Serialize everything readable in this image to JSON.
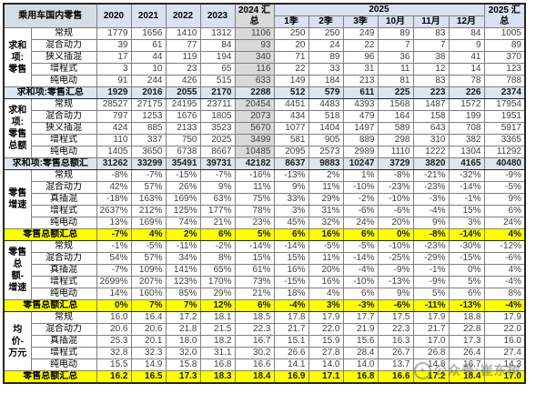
{
  "watermark": {
    "logo_glyph": "✦",
    "text": "公众号:崔东树"
  },
  "table": {
    "corner_label": "乘用车国内零售",
    "year_columns": [
      "2020",
      "2021",
      "2022",
      "2023"
    ],
    "col_2024_total": "2024 汇总",
    "group_2025_label": "2025",
    "sub_columns_2025": [
      "1季",
      "2季",
      "3季",
      "10月",
      "11月",
      "12月"
    ],
    "col_2025_total": "2025 汇总",
    "groups": [
      {
        "label": "求和项:零售",
        "gray_2024": true,
        "rows": [
          {
            "label": "常规",
            "values": [
              "1779",
              "1656",
              "1410",
              "1312",
              "1106",
              "250",
              "250",
              "249",
              "89",
              "83",
              "84",
              "1005"
            ]
          },
          {
            "label": "混合动力",
            "values": [
              "39",
              "61",
              "77",
              "84",
              "93",
              "20",
              "24",
              "22",
              "7",
              "7",
              "9",
              "89"
            ]
          },
          {
            "label": "狭义插混",
            "values": [
              "17",
              "44",
              "119",
              "194",
              "340",
              "71",
              "89",
              "96",
              "36",
              "38",
              "41",
              "370"
            ]
          },
          {
            "label": "增程式",
            "values": [
              "3",
              "10",
              "23",
              "65",
              "116",
              "22",
              "33",
              "31",
              "11",
              "12",
              "14",
              "123"
            ]
          },
          {
            "label": "纯电动",
            "values": [
              "91",
              "244",
              "426",
              "515",
              "633",
              "149",
              "184",
              "213",
              "81",
              "83",
              "78",
              "788"
            ]
          }
        ],
        "total": {
          "label": "求和项:零售汇总",
          "style": "blue",
          "values": [
            "1929",
            "2016",
            "2055",
            "2170",
            "2288",
            "512",
            "579",
            "611",
            "225",
            "223",
            "226",
            "2374"
          ]
        }
      },
      {
        "label": "求和项:零售总额",
        "gray_2024": true,
        "rows": [
          {
            "label": "常规",
            "values": [
              "28527",
              "27175",
              "24195",
              "23711",
              "20454",
              "4451",
              "4483",
              "4393",
              "1568",
              "1487",
              "1572",
              "17954"
            ]
          },
          {
            "label": "混合动力",
            "values": [
              "797",
              "1253",
              "1676",
              "1805",
              "2073",
              "434",
              "518",
              "479",
              "164",
              "158",
              "199",
              "1951"
            ]
          },
          {
            "label": "狭义插混",
            "values": [
              "424",
              "885",
              "2133",
              "3523",
              "5670",
              "1077",
              "1404",
              "1497",
              "589",
              "643",
              "708",
              "5917"
            ]
          },
          {
            "label": "增程式",
            "values": [
              "110",
              "337",
              "750",
              "2025",
              "3499",
              "581",
              "905",
              "889",
              "298",
              "310",
              "382",
              "3365"
            ]
          },
          {
            "label": "纯电动",
            "values": [
              "1405",
              "3650",
              "6738",
              "8667",
              "10485",
              "2095",
              "2573",
              "2989",
              "1110",
              "1222",
              "1304",
              "11292"
            ]
          }
        ],
        "total": {
          "label": "求和项:零售总额汇",
          "style": "blue",
          "values": [
            "31262",
            "33299",
            "35491",
            "39731",
            "42182",
            "8637",
            "9883",
            "10247",
            "3729",
            "3820",
            "4165",
            "40480"
          ]
        }
      },
      {
        "label": "零售增速",
        "gray_2024": false,
        "rows": [
          {
            "label": "常规",
            "values": [
              "-8%",
              "-7%",
              "-15%",
              "-7%",
              "-16%",
              "-13%",
              "2%",
              "1%",
              "-8%",
              "-21%",
              "-32%",
              "-9%"
            ]
          },
          {
            "label": "混合动力",
            "values": [
              "42%",
              "57%",
              "26%",
              "9%",
              "11%",
              "9%",
              "11%",
              "-10%",
              "-23%",
              "-23%",
              "-14%",
              "-5%"
            ]
          },
          {
            "label": "真插混",
            "values": [
              "-18%",
              "163%",
              "169%",
              "63%",
              "75%",
              "33%",
              "29%",
              "-2%",
              "-10%",
              "-3%",
              "-1%",
              "9%"
            ]
          },
          {
            "label": "增程式",
            "values": [
              "2637%",
              "212%",
              "125%",
              "177%",
              "78%",
              "3%",
              "31%",
              "-6%",
              "-6%",
              "-4%",
              "15%",
              "6%"
            ]
          },
          {
            "label": "纯电动",
            "values": [
              "13%",
              "169%",
              "74%",
              "21%",
              "23%",
              "45%",
              "32%",
              "24%",
              "20%",
              "9%",
              "3%",
              "24%"
            ]
          }
        ],
        "total": {
          "label": "零售总额汇总",
          "style": "yellow",
          "values": [
            "-7%",
            "4%",
            "2%",
            "6%",
            "5%",
            "6%",
            "16%",
            "6%",
            "0%",
            "-8%",
            "-14%",
            "4%"
          ]
        }
      },
      {
        "label": "零售总额-增速",
        "gray_2024": false,
        "rows": [
          {
            "label": "常规",
            "values": [
              "-1%",
              "-5%",
              "-11%",
              "-2%",
              "-14%",
              "-14%",
              "-5%",
              "-5%",
              "-10%",
              "-23%",
              "-30%",
              "-12%"
            ]
          },
          {
            "label": "混合动力",
            "values": [
              "54%",
              "57%",
              "34%",
              "8%",
              "15%",
              "15%",
              "11%",
              "-14%",
              "-25%",
              "-29%",
              "-15%",
              "-6%"
            ]
          },
          {
            "label": "真插混",
            "values": [
              "-7%",
              "109%",
              "141%",
              "65%",
              "61%",
              "16%",
              "20%",
              "-4%",
              "-9%",
              "-1%",
              "0%",
              "4%"
            ]
          },
          {
            "label": "增程式",
            "values": [
              "2699%",
              "207%",
              "123%",
              "170%",
              "73%",
              "-15%",
              "16%",
              "-10%",
              "-13%",
              "-9%",
              "5%",
              "-4%"
            ]
          },
          {
            "label": "纯电动",
            "values": [
              "14%",
              "160%",
              "85%",
              "29%",
              "21%",
              "18%",
              "4%",
              "6%",
              "9%",
              "5%",
              "6%",
              "8%"
            ]
          }
        ],
        "total": {
          "label": "零售总额汇总",
          "style": "yellow",
          "values": [
            "0%",
            "7%",
            "7%",
            "12%",
            "6%",
            "-4%",
            "3%",
            "-3%",
            "-6%",
            "-11%",
            "-13%",
            "-4%"
          ]
        }
      },
      {
        "label": "均价-万元",
        "gray_2024": false,
        "rows": [
          {
            "label": "常规",
            "values": [
              "16.0",
              "16.4",
              "17.2",
              "18.1",
              "18.5",
              "17.8",
              "17.9",
              "17.7",
              "17.5",
              "17.9",
              "18.8",
              "17.9"
            ]
          },
          {
            "label": "混合动力",
            "values": [
              "20.6",
              "20.6",
              "21.8",
              "21.5",
              "22.3",
              "21.7",
              "22.0",
              "21.9",
              "22.3",
              "21.7",
              "22.8",
              "22.0"
            ]
          },
          {
            "label": "真插混",
            "values": [
              "25.3",
              "20.1",
              "18.0",
              "18.2",
              "16.7",
              "15.1",
              "15.9",
              "15.6",
              "16.3",
              "17.0",
              "17.3",
              "16.0"
            ]
          },
          {
            "label": "增程式",
            "values": [
              "32.8",
              "32.3",
              "32.0",
              "31.1",
              "30.2",
              "26.6",
              "27.8",
              "28.4",
              "26.7",
              "26.8",
              "26.4",
              "27.4"
            ]
          },
          {
            "label": "纯电动",
            "values": [
              "15.5",
              "14.9",
              "15.8",
              "16.8",
              "16.6",
              "14.1",
              "14.0",
              "14.0",
              "13.7",
              "14.8",
              "16.7",
              "14.3"
            ]
          }
        ],
        "total": {
          "label": "零售总额汇总",
          "style": "yellow",
          "values": [
            "16.2",
            "16.5",
            "17.3",
            "18.3",
            "18.4",
            "16.9",
            "17.1",
            "16.8",
            "16.6",
            "17.2",
            "18.4",
            "17.0"
          ]
        }
      }
    ]
  }
}
